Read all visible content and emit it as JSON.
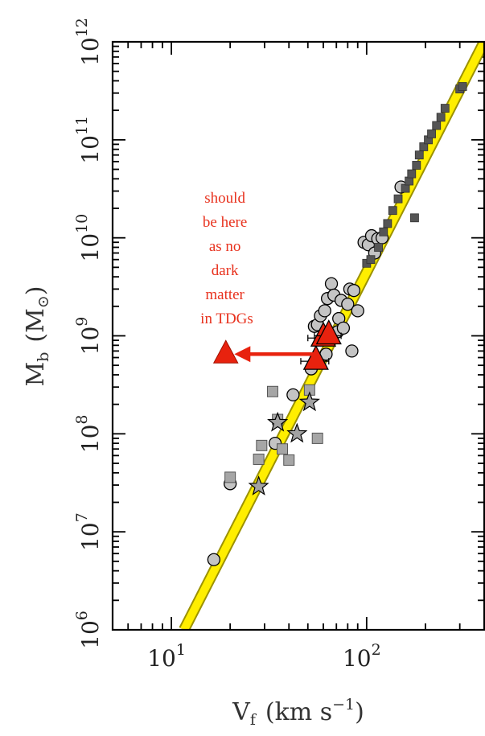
{
  "chart_data": {
    "type": "scatter",
    "title": "",
    "xlabel": "V",
    "xlabel_sub": "f",
    "xlabel_units": "(km s",
    "xlabel_units_sup": "−1",
    "xlabel_close": ")",
    "ylabel": "M",
    "ylabel_sub": "b",
    "ylabel_units": "(M",
    "ylabel_units_sub": "⊙",
    "ylabel_close": ")",
    "xscale": "log",
    "yscale": "log",
    "xlim": [
      5,
      400
    ],
    "ylim": [
      1000000,
      1000000000000
    ],
    "x_ticks": [
      {
        "value": 10,
        "base": "10",
        "exp": "1"
      },
      {
        "value": 100,
        "base": "10",
        "exp": "2"
      }
    ],
    "y_ticks": [
      {
        "value": 1000000,
        "base": "10",
        "exp": "6"
      },
      {
        "value": 10000000,
        "base": "10",
        "exp": "7"
      },
      {
        "value": 100000000,
        "base": "10",
        "exp": "8"
      },
      {
        "value": 1000000000,
        "base": "10",
        "exp": "9"
      },
      {
        "value": 10000000000,
        "base": "10",
        "exp": "10"
      },
      {
        "value": 100000000000,
        "base": "10",
        "exp": "11"
      },
      {
        "value": 1000000000000,
        "base": "10",
        "exp": "12"
      }
    ],
    "fit_line": {
      "color": "#ffee00",
      "edge_color": "#9c9200",
      "points": [
        [
          11.6,
          1000000
        ],
        [
          400,
          1000000000000
        ]
      ]
    },
    "colors": {
      "circle": "#c4c4c4",
      "gas_square": "#a6a6a6",
      "star_square": "#555555",
      "star": "#a2a2a2",
      "tdg": "#e8220e",
      "annotation": "#e8321e"
    },
    "series": [
      {
        "marker": "circle",
        "points": [
          [
            16.5,
            5200000
          ],
          [
            20,
            31000000
          ],
          [
            34,
            80000000
          ],
          [
            42,
            250000000
          ],
          [
            52,
            460000000
          ],
          [
            54,
            1250000000
          ],
          [
            56,
            1300000000
          ],
          [
            58,
            1600000000
          ],
          [
            61,
            1800000000
          ],
          [
            62,
            650000000
          ],
          [
            63,
            2400000000
          ],
          [
            66,
            3400000000
          ],
          [
            68,
            2600000000
          ],
          [
            71,
            1100000000
          ],
          [
            72,
            1500000000
          ],
          [
            74,
            2300000000
          ],
          [
            76,
            1200000000
          ],
          [
            80,
            2100000000
          ],
          [
            82,
            3000000000
          ],
          [
            84,
            700000000
          ],
          [
            86,
            2900000000
          ],
          [
            90,
            1800000000
          ],
          [
            97,
            9000000000
          ],
          [
            102,
            8500000000
          ],
          [
            106,
            10500000000
          ],
          [
            110,
            7000000000
          ],
          [
            114,
            9800000000
          ],
          [
            120,
            10000000000
          ],
          [
            150,
            33000000000
          ]
        ]
      },
      {
        "marker": "gas_square",
        "points": [
          [
            20,
            36000000
          ],
          [
            28,
            55000000
          ],
          [
            29,
            76000000
          ],
          [
            33,
            270000000
          ],
          [
            35,
            140000000
          ],
          [
            37,
            70000000
          ],
          [
            40,
            54000000
          ],
          [
            51,
            280000000
          ],
          [
            56,
            90000000
          ]
        ]
      },
      {
        "marker": "star_square",
        "points": [
          [
            100,
            5500000000
          ],
          [
            105,
            6000000000
          ],
          [
            115,
            8000000000
          ],
          [
            122,
            11500000000
          ],
          [
            128,
            14000000000
          ],
          [
            136,
            19000000000
          ],
          [
            145,
            25000000000
          ],
          [
            158,
            32000000000
          ],
          [
            165,
            38000000000
          ],
          [
            170,
            45000000000
          ],
          [
            176,
            16000000000
          ],
          [
            180,
            55000000000
          ],
          [
            186,
            70000000000
          ],
          [
            196,
            85000000000
          ],
          [
            207,
            100000000000
          ],
          [
            215,
            115000000000
          ],
          [
            228,
            140000000000
          ],
          [
            240,
            170000000000
          ],
          [
            252,
            210000000000
          ],
          [
            300,
            330000000000
          ],
          [
            310,
            350000000000
          ]
        ]
      },
      {
        "marker": "star",
        "points": [
          [
            28,
            29000000
          ],
          [
            35,
            130000000
          ],
          [
            44,
            100000000
          ],
          [
            51,
            210000000
          ]
        ]
      },
      {
        "marker": "triangle",
        "points": [
          [
            55,
            550000000
          ],
          [
            60,
            950000000
          ],
          [
            64,
            1000000000
          ]
        ],
        "xerr": [
          9,
          10,
          10
        ]
      }
    ],
    "annotation": {
      "lines": [
        "should",
        "be here",
        "as no",
        "dark",
        "matter",
        "in TDGs"
      ],
      "marker": {
        "x": 19,
        "y": 650000000
      },
      "arrow": {
        "from": [
          57,
          650000000
        ],
        "to": [
          21,
          650000000
        ]
      }
    }
  }
}
